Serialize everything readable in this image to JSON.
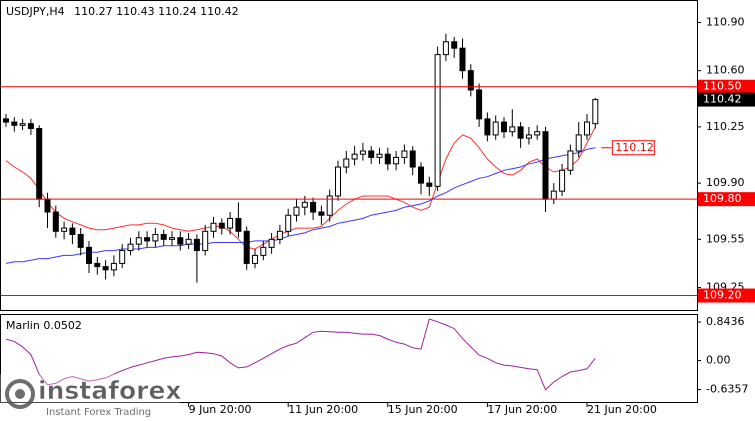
{
  "chart_data": {
    "type": "candlestick",
    "title": "USDJPY,H4",
    "open": [
      110.3,
      110.28,
      110.26,
      110.27,
      110.24,
      109.8,
      109.72,
      109.6,
      109.62,
      109.58,
      109.5,
      109.4,
      109.38,
      109.36,
      109.4,
      109.48,
      109.52,
      109.56,
      109.54,
      109.58,
      109.55,
      109.56,
      109.52,
      109.55,
      109.48,
      109.6,
      109.65,
      109.62,
      109.68,
      109.6,
      109.4,
      109.45,
      109.5,
      109.55,
      109.6,
      109.7,
      109.75,
      109.78,
      109.72,
      109.7,
      109.82,
      110.0,
      110.05,
      110.08,
      110.1,
      110.06,
      110.08,
      110.02,
      110.06,
      110.1,
      110.0,
      109.9,
      109.88,
      110.7,
      110.78,
      110.74,
      110.6,
      110.48,
      110.3,
      110.2,
      110.28,
      110.22,
      110.25,
      110.18,
      110.2,
      110.22,
      109.8,
      109.85,
      109.98,
      110.1,
      110.2,
      110.27
    ],
    "high": [
      110.33,
      110.31,
      110.3,
      110.3,
      110.26,
      109.84,
      109.76,
      109.66,
      109.65,
      109.62,
      109.54,
      109.44,
      109.42,
      109.45,
      109.52,
      109.56,
      109.6,
      109.6,
      109.62,
      109.61,
      109.6,
      109.6,
      109.59,
      109.58,
      109.64,
      109.69,
      109.68,
      109.72,
      109.78,
      109.63,
      109.49,
      109.54,
      109.59,
      109.64,
      109.74,
      109.8,
      109.82,
      109.81,
      109.76,
      109.86,
      110.04,
      110.1,
      110.13,
      110.15,
      110.13,
      110.12,
      110.12,
      110.1,
      110.14,
      110.13,
      110.03,
      109.94,
      110.75,
      110.83,
      110.81,
      110.8,
      110.64,
      110.52,
      110.34,
      110.32,
      110.31,
      110.36,
      110.28,
      110.25,
      110.26,
      110.25,
      109.9,
      110.02,
      110.14,
      110.28,
      110.33,
      110.43
    ],
    "low": [
      110.25,
      110.22,
      110.23,
      110.2,
      109.75,
      109.62,
      109.56,
      109.55,
      109.52,
      109.45,
      109.34,
      109.33,
      109.3,
      109.32,
      109.37,
      109.45,
      109.48,
      109.5,
      109.5,
      109.51,
      109.51,
      109.48,
      109.49,
      109.28,
      109.45,
      109.56,
      109.58,
      109.58,
      109.56,
      109.36,
      109.37,
      109.42,
      109.46,
      109.52,
      109.57,
      109.66,
      109.7,
      109.67,
      109.64,
      109.66,
      109.79,
      109.96,
      110.01,
      110.04,
      110.02,
      110.02,
      109.98,
      109.98,
      110.02,
      109.95,
      109.83,
      109.82,
      109.85,
      110.66,
      110.68,
      110.55,
      110.44,
      110.25,
      110.16,
      110.17,
      110.18,
      110.19,
      110.12,
      110.14,
      110.17,
      109.72,
      109.77,
      109.82,
      109.95,
      110.06,
      110.17,
      110.24
    ],
    "close": [
      110.28,
      110.26,
      110.27,
      110.24,
      109.8,
      109.72,
      109.6,
      109.62,
      109.58,
      109.5,
      109.4,
      109.38,
      109.36,
      109.4,
      109.48,
      109.52,
      109.56,
      109.54,
      109.58,
      109.55,
      109.56,
      109.52,
      109.55,
      109.48,
      109.6,
      109.65,
      109.62,
      109.68,
      109.6,
      109.4,
      109.45,
      109.5,
      109.55,
      109.6,
      109.7,
      109.75,
      109.78,
      109.72,
      109.7,
      109.82,
      110.0,
      110.05,
      110.08,
      110.1,
      110.06,
      110.08,
      110.02,
      110.06,
      110.1,
      110.0,
      109.9,
      109.88,
      110.7,
      110.78,
      110.74,
      110.6,
      110.48,
      110.3,
      110.2,
      110.28,
      110.22,
      110.25,
      110.18,
      110.2,
      110.22,
      109.8,
      109.85,
      109.98,
      110.1,
      110.2,
      110.28,
      110.42
    ],
    "up_color": "#ffffff",
    "down_color": "#000000",
    "edge_color": "#000000",
    "series": [
      {
        "color": "#ff3030",
        "values": [
          110.04,
          110.0,
          109.97,
          109.93,
          109.86,
          109.78,
          109.72,
          109.68,
          109.66,
          109.64,
          109.62,
          109.61,
          109.61,
          109.62,
          109.63,
          109.64,
          109.64,
          109.65,
          109.65,
          109.64,
          109.62,
          109.61,
          109.6,
          109.61,
          109.62,
          109.63,
          109.63,
          109.6,
          109.55,
          109.5,
          109.49,
          109.52,
          109.55,
          109.58,
          109.6,
          109.62,
          109.62,
          109.62,
          109.63,
          109.68,
          109.73,
          109.77,
          109.8,
          109.82,
          109.82,
          109.82,
          109.82,
          109.8,
          109.78,
          109.75,
          109.73,
          109.75,
          109.9,
          110.05,
          110.15,
          110.2,
          110.18,
          110.12,
          110.05,
          110.0,
          109.96,
          109.95,
          109.98,
          110.03,
          110.05,
          110.0,
          109.97,
          109.98,
          110.0,
          110.05,
          110.15,
          110.25
        ]
      },
      {
        "color": "#3a3aff",
        "values": [
          109.4,
          109.41,
          109.41,
          109.42,
          109.43,
          109.43,
          109.44,
          109.45,
          109.45,
          109.46,
          109.47,
          109.47,
          109.48,
          109.48,
          109.49,
          109.49,
          109.49,
          109.5,
          109.5,
          109.51,
          109.51,
          109.51,
          109.52,
          109.52,
          109.52,
          109.53,
          109.53,
          109.53,
          109.53,
          109.53,
          109.54,
          109.54,
          109.54,
          109.55,
          109.57,
          109.58,
          109.59,
          109.61,
          109.62,
          109.63,
          109.65,
          109.66,
          109.67,
          109.68,
          109.7,
          109.71,
          109.72,
          109.73,
          109.75,
          109.76,
          109.77,
          109.79,
          109.82,
          109.84,
          109.87,
          109.89,
          109.91,
          109.93,
          109.94,
          109.96,
          109.98,
          109.99,
          110.0,
          110.02,
          110.03,
          110.05,
          110.06,
          110.07,
          110.08,
          110.09,
          110.11,
          110.12
        ]
      }
    ],
    "ylim": [
      109.11,
      111.04
    ],
    "yticks": [
      {
        "value": 110.9,
        "label": "110.90"
      },
      {
        "value": 110.6,
        "label": "110.60"
      },
      {
        "value": 110.25,
        "label": "110.25"
      },
      {
        "value": 109.9,
        "label": "109.90"
      },
      {
        "value": 109.55,
        "label": "109.55"
      },
      {
        "value": 109.25,
        "label": "109.25"
      }
    ],
    "levels": [
      {
        "value": 110.5,
        "label": "110.50"
      },
      {
        "value": 109.8,
        "label": "109.80"
      },
      {
        "value": 109.2,
        "label": "109.20"
      }
    ],
    "level_color": "#ff0000",
    "xticks": [
      {
        "value": 22,
        "label": "9 Jun 20:00"
      },
      {
        "value": 34,
        "label": "11 Jun 20:00"
      },
      {
        "value": 46,
        "label": "15 Jun 20:00"
      },
      {
        "value": 58,
        "label": "17 Jun 20:00"
      },
      {
        "value": 70,
        "label": "21 Jun 20:00"
      }
    ],
    "indicator": {
      "type": "line",
      "name": "Marlin",
      "color": "#a020a0",
      "values": [
        0.47,
        0.42,
        0.3,
        0.13,
        -0.3,
        -0.53,
        -0.5,
        -0.4,
        -0.35,
        -0.4,
        -0.45,
        -0.42,
        -0.38,
        -0.3,
        -0.22,
        -0.15,
        -0.1,
        -0.05,
        0.0,
        0.05,
        0.08,
        0.1,
        0.13,
        0.18,
        0.17,
        0.15,
        0.1,
        -0.05,
        -0.16,
        -0.14,
        -0.05,
        0.05,
        0.15,
        0.25,
        0.33,
        0.38,
        0.5,
        0.62,
        0.64,
        0.63,
        0.62,
        0.62,
        0.6,
        0.58,
        0.58,
        0.55,
        0.47,
        0.4,
        0.36,
        0.28,
        0.25,
        0.91,
        0.85,
        0.78,
        0.7,
        0.48,
        0.3,
        0.12,
        0.05,
        -0.05,
        -0.1,
        -0.12,
        -0.15,
        -0.18,
        -0.2,
        -0.64,
        -0.47,
        -0.35,
        -0.25,
        -0.22,
        -0.18,
        0.0502
      ],
      "ylim": [
        -0.93,
        1.02
      ],
      "yticks": [
        0.8436,
        {
          "value": 0,
          "label": "0.00"
        },
        -0.6357
      ]
    }
  },
  "watermark": {
    "name": "instaforex",
    "tagline": "Instant Forex Trading"
  }
}
